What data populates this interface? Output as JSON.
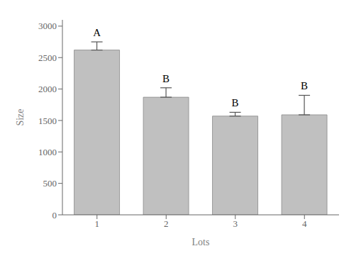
{
  "chart_data": {
    "type": "bar",
    "categories": [
      "1",
      "2",
      "3",
      "4"
    ],
    "values": [
      2620,
      1870,
      1570,
      1590
    ],
    "errors": [
      130,
      150,
      60,
      310
    ],
    "sig_labels": [
      "A",
      "B",
      "B",
      "B"
    ],
    "color": "#C0C0C0",
    "xlabel": "Lots",
    "ylabel": "Size",
    "ylim": [
      0,
      3100
    ],
    "yticks": [
      0,
      500,
      1000,
      1500,
      2000,
      2500,
      3000
    ],
    "grid": false
  }
}
